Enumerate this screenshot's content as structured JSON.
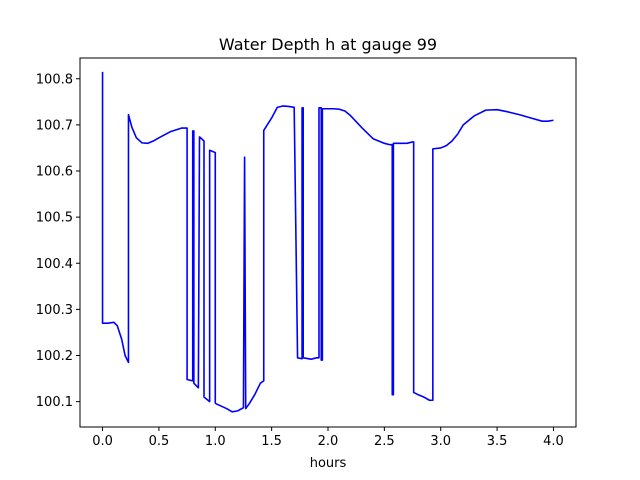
{
  "chart_data": {
    "type": "line",
    "title": "Water Depth h at gauge 99",
    "xlabel": "hours",
    "ylabel": "",
    "xlim": [
      -0.2,
      4.2
    ],
    "ylim": [
      100.045,
      100.845
    ],
    "x_ticks": [
      0.0,
      0.5,
      1.0,
      1.5,
      2.0,
      2.5,
      3.0,
      3.5,
      4.0
    ],
    "x_tick_labels": [
      "0.0",
      "0.5",
      "1.0",
      "1.5",
      "2.0",
      "2.5",
      "3.0",
      "3.5",
      "4.0"
    ],
    "y_ticks": [
      100.1,
      100.2,
      100.3,
      100.4,
      100.5,
      100.6,
      100.7,
      100.8
    ],
    "y_tick_labels": [
      "100.1",
      "100.2",
      "100.3",
      "100.4",
      "100.5",
      "100.6",
      "100.7",
      "100.8"
    ],
    "grid": false,
    "series": [
      {
        "color": "#0000ff",
        "x": [
          0.0,
          0.0,
          0.05,
          0.1,
          0.13,
          0.17,
          0.2,
          0.23,
          0.23,
          0.26,
          0.3,
          0.35,
          0.4,
          0.45,
          0.5,
          0.6,
          0.7,
          0.74,
          0.75,
          0.75,
          0.8,
          0.8,
          0.81,
          0.81,
          0.85,
          0.86,
          0.86,
          0.9,
          0.9,
          0.95,
          0.95,
          1.0,
          1.0,
          1.01,
          1.01,
          1.1,
          1.15,
          1.2,
          1.25,
          1.26,
          1.26,
          1.27,
          1.27,
          1.3,
          1.35,
          1.4,
          1.43,
          1.43,
          1.5,
          1.55,
          1.6,
          1.65,
          1.7,
          1.73,
          1.73,
          1.77,
          1.77,
          1.78,
          1.78,
          1.85,
          1.9,
          1.92,
          1.92,
          1.94,
          1.94,
          1.95,
          1.95,
          2.0,
          2.05,
          2.1,
          2.15,
          2.2,
          2.3,
          2.4,
          2.5,
          2.55,
          2.57,
          2.57,
          2.58,
          2.58,
          2.65,
          2.7,
          2.75,
          2.76,
          2.76,
          2.8,
          2.85,
          2.9,
          2.93,
          2.93,
          3.0,
          3.05,
          3.1,
          3.15,
          3.2,
          3.3,
          3.4,
          3.5,
          3.6,
          3.7,
          3.8,
          3.9,
          3.95,
          4.0
        ],
        "y": [
          100.815,
          100.27,
          100.27,
          100.272,
          100.265,
          100.235,
          100.2,
          100.185,
          100.722,
          100.695,
          100.672,
          100.661,
          100.66,
          100.665,
          100.672,
          100.685,
          100.693,
          100.693,
          100.693,
          100.148,
          100.145,
          100.687,
          100.687,
          100.14,
          100.13,
          100.674,
          100.674,
          100.665,
          100.11,
          100.1,
          100.645,
          100.64,
          100.097,
          100.095,
          100.095,
          100.085,
          100.078,
          100.08,
          100.087,
          100.63,
          100.63,
          100.085,
          100.085,
          100.095,
          100.115,
          100.14,
          100.145,
          100.688,
          100.715,
          100.738,
          100.741,
          100.74,
          100.738,
          100.195,
          100.195,
          100.193,
          100.737,
          100.737,
          100.195,
          100.192,
          100.195,
          100.195,
          100.737,
          100.737,
          100.19,
          100.19,
          100.735,
          100.735,
          100.735,
          100.734,
          100.73,
          100.72,
          100.694,
          100.67,
          100.66,
          100.657,
          100.657,
          100.115,
          100.115,
          100.66,
          100.66,
          100.66,
          100.663,
          100.663,
          100.12,
          100.115,
          100.11,
          100.103,
          100.103,
          100.648,
          100.65,
          100.655,
          100.665,
          100.68,
          100.7,
          100.72,
          100.732,
          100.733,
          100.728,
          100.722,
          100.715,
          100.708,
          100.708,
          100.71
        ]
      }
    ]
  }
}
